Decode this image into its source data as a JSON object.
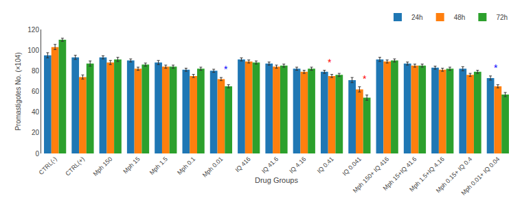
{
  "chart_data": {
    "type": "bar",
    "categories": [
      "CTRL(-)",
      "CTRL(+)",
      "Mph 150",
      "Mph 15",
      "Mph 1.5",
      "Mph 0.1",
      "Mph 0.01",
      "IQ 416",
      "IQ 41.6",
      "IQ 4.16",
      "IQ 0.41",
      "IQ 0.041",
      "Mph 150+ IQ 416",
      "Mph 15+IQ 41.6",
      "Mph 1.5+IQ 4.16",
      "Mph 0.15+ IQ 0.4",
      "Mph 0.01+ IQ 0.04"
    ],
    "series": [
      {
        "name": "24h",
        "values": [
          95,
          93,
          93,
          90,
          88,
          81,
          80,
          91,
          87,
          82,
          79,
          71,
          91,
          87,
          83,
          82,
          73
        ],
        "error": [
          2.5,
          2.0,
          1.5,
          1.5,
          2.0,
          1.5,
          1.5,
          1.5,
          1.5,
          1.5,
          1.5,
          2.5,
          2.0,
          1.5,
          1.5,
          2.0,
          2.0
        ]
      },
      {
        "name": "48h",
        "values": [
          103,
          74,
          88,
          82,
          84,
          75,
          72,
          89,
          84,
          79,
          75,
          62,
          89,
          85,
          81,
          76,
          65
        ],
        "error": [
          2.5,
          2.0,
          2.0,
          1.5,
          1.5,
          1.5,
          1.5,
          1.5,
          1.5,
          1.5,
          1.5,
          2.5,
          1.5,
          1.5,
          1.5,
          1.5,
          1.5
        ]
      },
      {
        "name": "72h",
        "values": [
          110,
          87,
          91,
          86,
          84,
          82,
          65,
          88,
          85,
          82,
          76,
          54,
          90,
          85,
          82,
          79,
          57
        ],
        "error": [
          1.5,
          2.5,
          2.0,
          1.5,
          1.5,
          1.5,
          1.5,
          1.5,
          1.5,
          1.5,
          1.5,
          2.5,
          1.5,
          1.5,
          1.5,
          1.5,
          2.0
        ]
      }
    ],
    "annotations": [
      {
        "text": "*",
        "category": "Mph 0.01",
        "series": "48h",
        "color": "blue"
      },
      {
        "text": "*",
        "category": "IQ 0.41",
        "series": "24h",
        "color": "red"
      },
      {
        "text": "*",
        "category": "IQ 0.041",
        "series": "48h",
        "color": "red"
      },
      {
        "text": "*",
        "category": "Mph 0.01+ IQ 0.04",
        "series": "24h",
        "color": "blue"
      }
    ],
    "xlabel": "Drug Groups",
    "ylabel": "Promastigotes No. (×104)",
    "ylim": [
      0,
      120
    ],
    "yticks": [
      0,
      20,
      40,
      60,
      80,
      100,
      120
    ],
    "legend": "upper right",
    "grid": false
  }
}
